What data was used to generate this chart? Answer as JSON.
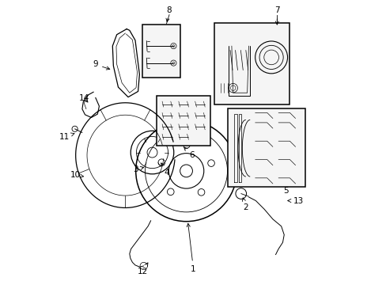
{
  "bg_color": "#ffffff",
  "line_color": "#000000",
  "fig_width": 4.89,
  "fig_height": 3.6,
  "dpi": 100,
  "label_positions": {
    "1": {
      "text": [
        0.5,
        0.055
      ],
      "point": [
        0.48,
        0.225
      ]
    },
    "2": {
      "text": [
        0.685,
        0.27
      ],
      "point": [
        0.672,
        0.315
      ]
    },
    "3": {
      "text": [
        0.295,
        0.405
      ],
      "point": [
        0.335,
        0.415
      ]
    },
    "4": {
      "text": [
        0.405,
        0.395
      ],
      "point": [
        0.385,
        0.43
      ]
    },
    "5": {
      "text": [
        0.825,
        0.33
      ],
      "point": null
    },
    "6": {
      "text": [
        0.495,
        0.455
      ],
      "point": [
        0.46,
        0.49
      ]
    },
    "7": {
      "text": [
        0.795,
        0.965
      ],
      "point": [
        0.795,
        0.905
      ]
    },
    "8": {
      "text": [
        0.415,
        0.965
      ],
      "point": [
        0.405,
        0.915
      ]
    },
    "9": {
      "text": [
        0.155,
        0.775
      ],
      "point": [
        0.215,
        0.755
      ]
    },
    "10": {
      "text": [
        0.085,
        0.385
      ],
      "point": [
        0.115,
        0.38
      ]
    },
    "11": {
      "text": [
        0.045,
        0.52
      ],
      "point": [
        0.09,
        0.535
      ]
    },
    "12": {
      "text": [
        0.32,
        0.045
      ],
      "point": [
        0.345,
        0.085
      ]
    },
    "13": {
      "text": [
        0.87,
        0.295
      ],
      "point": [
        0.83,
        0.295
      ]
    },
    "14": {
      "text": [
        0.115,
        0.655
      ],
      "point": [
        0.135,
        0.635
      ]
    }
  }
}
